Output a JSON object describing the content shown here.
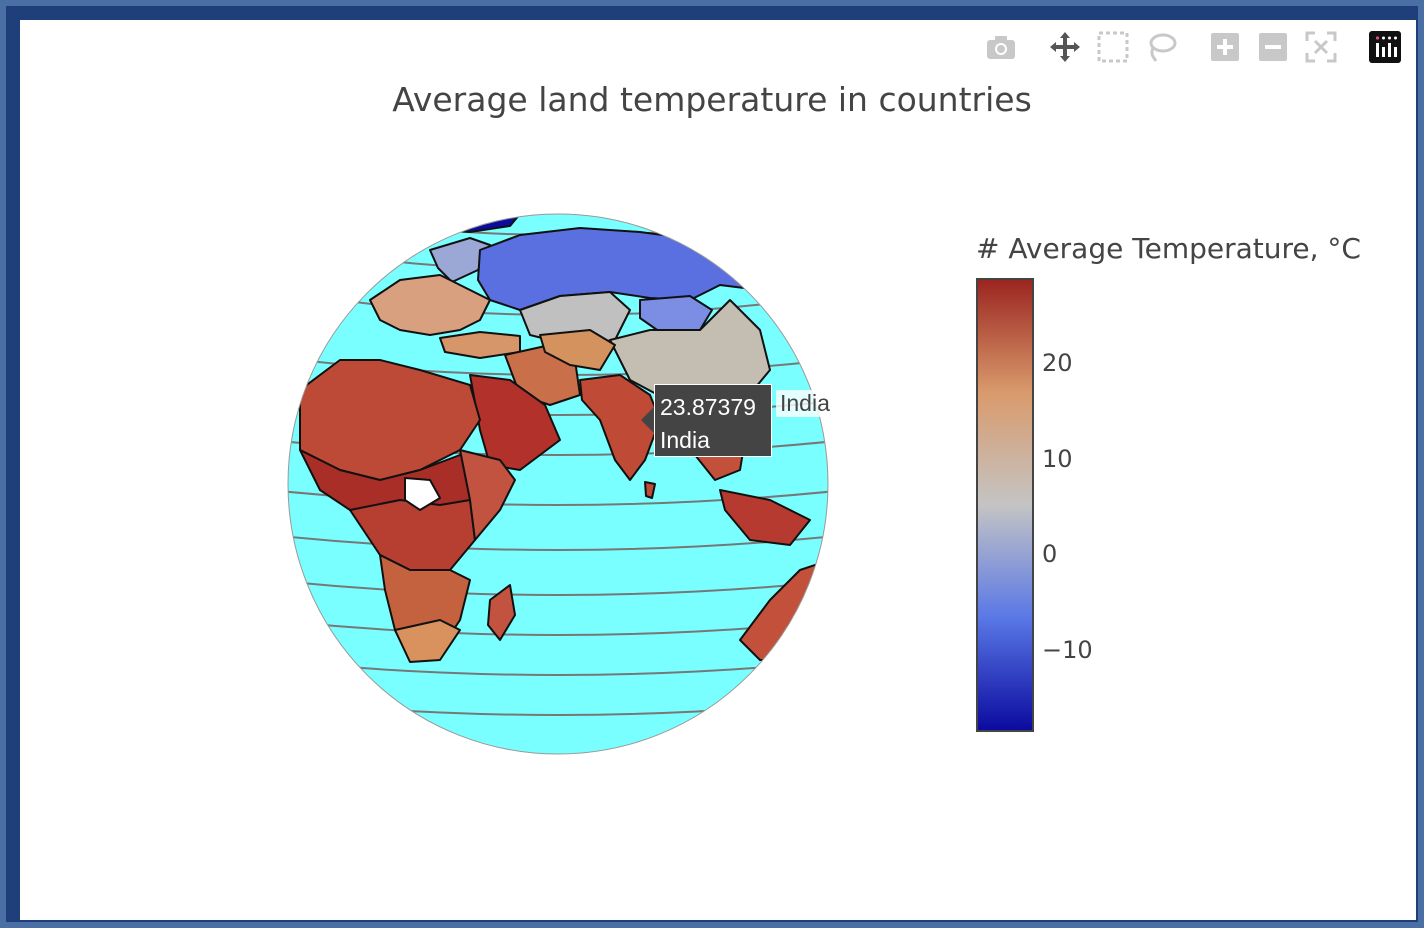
{
  "chart_data": {
    "type": "choropleth",
    "title": "Average land temperature in countries",
    "projection": "orthographic",
    "ocean_color": "#79ffff",
    "colorbar": {
      "title": "# Average Temperature, °C",
      "tick_labels": [
        "20",
        "10",
        "0",
        "−10"
      ],
      "tick_values": [
        20,
        10,
        0,
        -10
      ],
      "range": [
        -18.5,
        29
      ],
      "colorscale": [
        "#0b0b9f",
        "#5a78e6",
        "#c4c4c4",
        "#d99a6c",
        "#9b2520"
      ]
    },
    "hover": {
      "value": "23.87379",
      "country": "India",
      "name_label": "India"
    }
  },
  "modebar": {
    "icons": [
      "camera-icon",
      "pan-icon",
      "box-select-icon",
      "lasso-icon",
      "zoom-in-icon",
      "zoom-out-icon",
      "autoscale-icon",
      "plotly-logo-icon"
    ]
  }
}
